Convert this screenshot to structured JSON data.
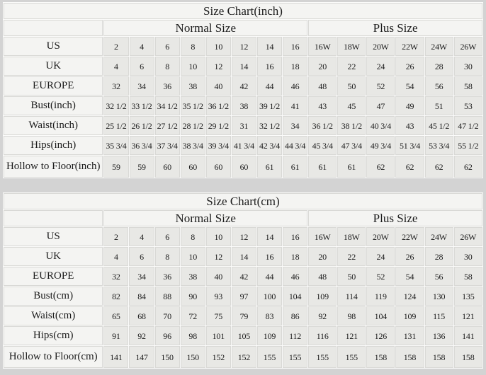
{
  "colors": {
    "page_bg": "#d3d3d3",
    "cell_gap": "#fbfbfa",
    "header_cell_bg": "#f4f4f2",
    "data_cell_bg": "#e8e8e5",
    "cell_border": "#d9d9d6",
    "text": "#1c1c1c"
  },
  "chart_data": [
    {
      "type": "table",
      "title": "Size Chart(inch)",
      "column_groups": [
        {
          "label": "Normal Size",
          "span": 8
        },
        {
          "label": "Plus Size",
          "span": 6
        }
      ],
      "rows": [
        {
          "label": "US",
          "normal": [
            "2",
            "4",
            "6",
            "8",
            "10",
            "12",
            "14",
            "16"
          ],
          "plus": [
            "16W",
            "18W",
            "20W",
            "22W",
            "24W",
            "26W"
          ]
        },
        {
          "label": "UK",
          "normal": [
            "4",
            "6",
            "8",
            "10",
            "12",
            "14",
            "16",
            "18"
          ],
          "plus": [
            "20",
            "22",
            "24",
            "26",
            "28",
            "30"
          ]
        },
        {
          "label": "EUROPE",
          "normal": [
            "32",
            "34",
            "36",
            "38",
            "40",
            "42",
            "44",
            "46"
          ],
          "plus": [
            "48",
            "50",
            "52",
            "54",
            "56",
            "58"
          ]
        },
        {
          "label": "Bust(inch)",
          "normal": [
            "32 1/2",
            "33 1/2",
            "34 1/2",
            "35 1/2",
            "36 1/2",
            "38",
            "39 1/2",
            "41"
          ],
          "plus": [
            "43",
            "45",
            "47",
            "49",
            "51",
            "53"
          ]
        },
        {
          "label": "Waist(inch)",
          "normal": [
            "25 1/2",
            "26 1/2",
            "27 1/2",
            "28 1/2",
            "29 1/2",
            "31",
            "32 1/2",
            "34"
          ],
          "plus": [
            "36 1/2",
            "38 1/2",
            "40 3/4",
            "43",
            "45 1/2",
            "47 1/2"
          ]
        },
        {
          "label": "Hips(inch)",
          "normal": [
            "35 3/4",
            "36 3/4",
            "37 3/4",
            "38 3/4",
            "39 3/4",
            "41 3/4",
            "42 3/4",
            "44 3/4"
          ],
          "plus": [
            "45 3/4",
            "47 3/4",
            "49 3/4",
            "51 3/4",
            "53 3/4",
            "55 1/2"
          ]
        },
        {
          "label": "Hollow to Floor(inch)",
          "normal": [
            "59",
            "59",
            "60",
            "60",
            "60",
            "60",
            "61",
            "61"
          ],
          "plus": [
            "61",
            "61",
            "62",
            "62",
            "62",
            "62"
          ]
        }
      ]
    },
    {
      "type": "table",
      "title": "Size Chart(cm)",
      "column_groups": [
        {
          "label": "Normal Size",
          "span": 8
        },
        {
          "label": "Plus Size",
          "span": 6
        }
      ],
      "rows": [
        {
          "label": "US",
          "normal": [
            "2",
            "4",
            "6",
            "8",
            "10",
            "12",
            "14",
            "16"
          ],
          "plus": [
            "16W",
            "18W",
            "20W",
            "22W",
            "24W",
            "26W"
          ]
        },
        {
          "label": "UK",
          "normal": [
            "4",
            "6",
            "8",
            "10",
            "12",
            "14",
            "16",
            "18"
          ],
          "plus": [
            "20",
            "22",
            "24",
            "26",
            "28",
            "30"
          ]
        },
        {
          "label": "EUROPE",
          "normal": [
            "32",
            "34",
            "36",
            "38",
            "40",
            "42",
            "44",
            "46"
          ],
          "plus": [
            "48",
            "50",
            "52",
            "54",
            "56",
            "58"
          ]
        },
        {
          "label": "Bust(cm)",
          "normal": [
            "82",
            "84",
            "88",
            "90",
            "93",
            "97",
            "100",
            "104"
          ],
          "plus": [
            "109",
            "114",
            "119",
            "124",
            "130",
            "135"
          ]
        },
        {
          "label": "Waist(cm)",
          "normal": [
            "65",
            "68",
            "70",
            "72",
            "75",
            "79",
            "83",
            "86"
          ],
          "plus": [
            "92",
            "98",
            "104",
            "109",
            "115",
            "121"
          ]
        },
        {
          "label": "Hips(cm)",
          "normal": [
            "91",
            "92",
            "96",
            "98",
            "101",
            "105",
            "109",
            "112"
          ],
          "plus": [
            "116",
            "121",
            "126",
            "131",
            "136",
            "141"
          ]
        },
        {
          "label": "Hollow to Floor(cm)",
          "normal": [
            "141",
            "147",
            "150",
            "150",
            "152",
            "152",
            "155",
            "155"
          ],
          "plus": [
            "155",
            "155",
            "158",
            "158",
            "158",
            "158"
          ]
        }
      ]
    }
  ]
}
